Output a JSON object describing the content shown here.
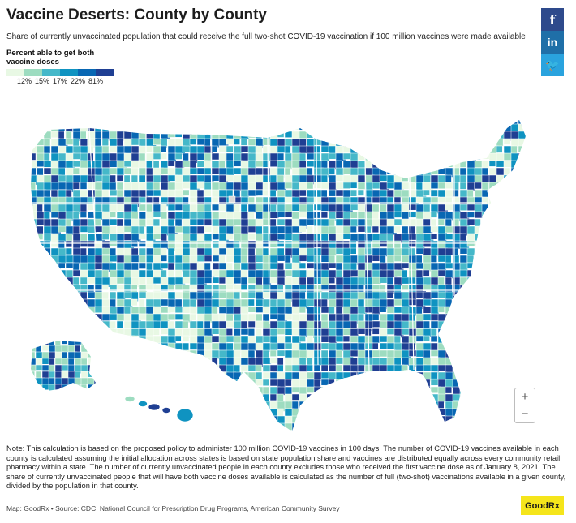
{
  "header": {
    "title": "Vaccine Deserts: County by County",
    "subtitle": "Share of currently unvaccinated population that could receive the full two-shot COVID-19 vaccination if 100 million vaccines were made available"
  },
  "legend": {
    "title_line1": "Percent able to get both",
    "title_line2": "vaccine doses",
    "colors": [
      "#e8f8e4",
      "#9ddcc0",
      "#45b8c9",
      "#0f93c1",
      "#0867b3",
      "#1f3f93"
    ],
    "ticks": [
      "12%",
      "15%",
      "17%",
      "22%",
      "81%"
    ]
  },
  "share": {
    "facebook_icon": "facebook-icon",
    "facebook_glyph": "f",
    "linkedin_icon": "linkedin-icon",
    "linkedin_glyph": "in",
    "twitter_icon": "twitter-icon",
    "twitter_glyph": "🐦"
  },
  "zoom": {
    "in_label": "+",
    "out_label": "−"
  },
  "map": {
    "no_data_color": "#d9d9d9",
    "border_color": "#ffffff"
  },
  "note": "Note: This calculation is based on the proposed policy to administer 100 million COVID-19 vaccines in 100 days. The number of COVID-19 vaccines available in each county is calculated assuming the initial allocation across states is based on state population share and vaccines are distributed equally across every community retail pharmacy within a state. The number of currently unvaccinated people in each county excludes those who received the first vaccine dose as of January 8, 2021. The share of currently unvaccinated people that will have both vaccine doses available is calculated as the number of full (two-shot) vaccinations available in a given county, divided by the population in that county.",
  "source": "Map: GoodRx • Source: CDC, National Council for Prescription Drug Programs, American Community Survey",
  "logo": {
    "text": "GoodRx"
  }
}
